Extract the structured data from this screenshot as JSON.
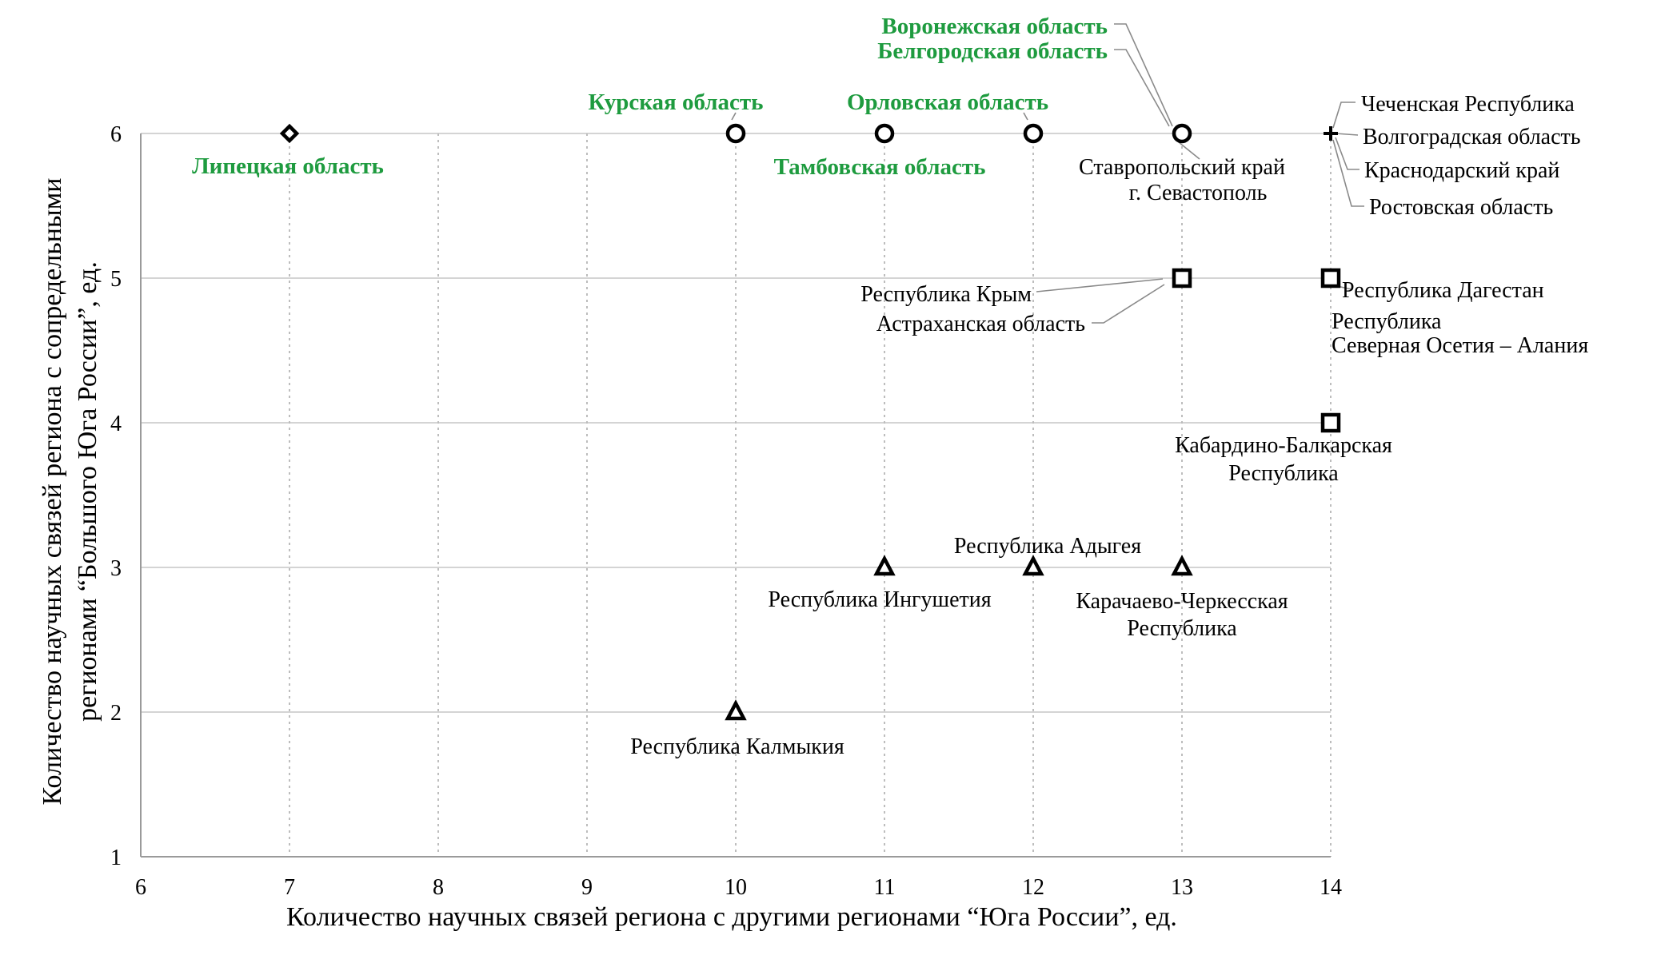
{
  "chart_data": {
    "type": "scatter",
    "title": "",
    "xlabel": "Количество научных связей региона с другими регионами “Юга России”, ед.",
    "ylabel_lines": [
      "Количество научных связей региона с сопредельными",
      "регионами “Большого Юга России”, ед."
    ],
    "xlim": [
      6,
      14
    ],
    "ylim": [
      1,
      6
    ],
    "xticks": [
      6,
      7,
      8,
      9,
      10,
      11,
      12,
      13,
      14
    ],
    "yticks": [
      1,
      2,
      3,
      4,
      5,
      6
    ],
    "grid": true,
    "points": [
      {
        "x": 7,
        "y": 6,
        "marker": "diamond",
        "labels": [
          {
            "text": "Липецкая область",
            "green": true
          }
        ]
      },
      {
        "x": 10,
        "y": 6,
        "marker": "circle",
        "labels": [
          {
            "text": "Курская область",
            "green": true
          }
        ]
      },
      {
        "x": 11,
        "y": 6,
        "marker": "circle",
        "labels": [
          {
            "text": "Тамбовская область",
            "green": true
          }
        ]
      },
      {
        "x": 12,
        "y": 6,
        "marker": "circle",
        "labels": [
          {
            "text": "Орловская область",
            "green": true
          }
        ]
      },
      {
        "x": 13,
        "y": 6,
        "marker": "circle",
        "labels": [
          {
            "text": "Воронежская область",
            "green": true
          },
          {
            "text": "Белгородская область",
            "green": true
          },
          {
            "text": "Ставропольский край",
            "green": false
          },
          {
            "text": "г. Севастополь",
            "green": false
          }
        ]
      },
      {
        "x": 14,
        "y": 6,
        "marker": "plus",
        "labels": [
          {
            "text": "Чеченская Республика",
            "green": false
          },
          {
            "text": "Волгоградская область",
            "green": false
          },
          {
            "text": "Краснодарский край",
            "green": false
          },
          {
            "text": "Ростовская область",
            "green": false
          }
        ]
      },
      {
        "x": 13,
        "y": 5,
        "marker": "square",
        "labels": [
          {
            "text": "Республика Крым",
            "green": false
          },
          {
            "text": "Астраханская область",
            "green": false
          }
        ]
      },
      {
        "x": 14,
        "y": 5,
        "marker": "square",
        "labels": [
          {
            "text": "Республика Дагестан",
            "green": false
          },
          {
            "text": "Республика",
            "green": false
          },
          {
            "text": "Северная Осетия – Алания",
            "green": false
          }
        ]
      },
      {
        "x": 14,
        "y": 4,
        "marker": "square",
        "labels": [
          {
            "text": "Кабардино-Балкарская",
            "green": false
          },
          {
            "text": "Республика",
            "green": false
          }
        ]
      },
      {
        "x": 11,
        "y": 3,
        "marker": "triangle",
        "labels": [
          {
            "text": "Республика Ингушетия",
            "green": false
          }
        ]
      },
      {
        "x": 12,
        "y": 3,
        "marker": "triangle",
        "labels": [
          {
            "text": "Республика Адыгея",
            "green": false
          }
        ]
      },
      {
        "x": 13,
        "y": 3,
        "marker": "triangle",
        "labels": [
          {
            "text": "Карачаево-Черкесская",
            "green": false
          },
          {
            "text": "Республика",
            "green": false
          }
        ]
      },
      {
        "x": 10,
        "y": 2,
        "marker": "triangle",
        "labels": [
          {
            "text": "Республика Калмыкия",
            "green": false
          }
        ]
      }
    ]
  }
}
